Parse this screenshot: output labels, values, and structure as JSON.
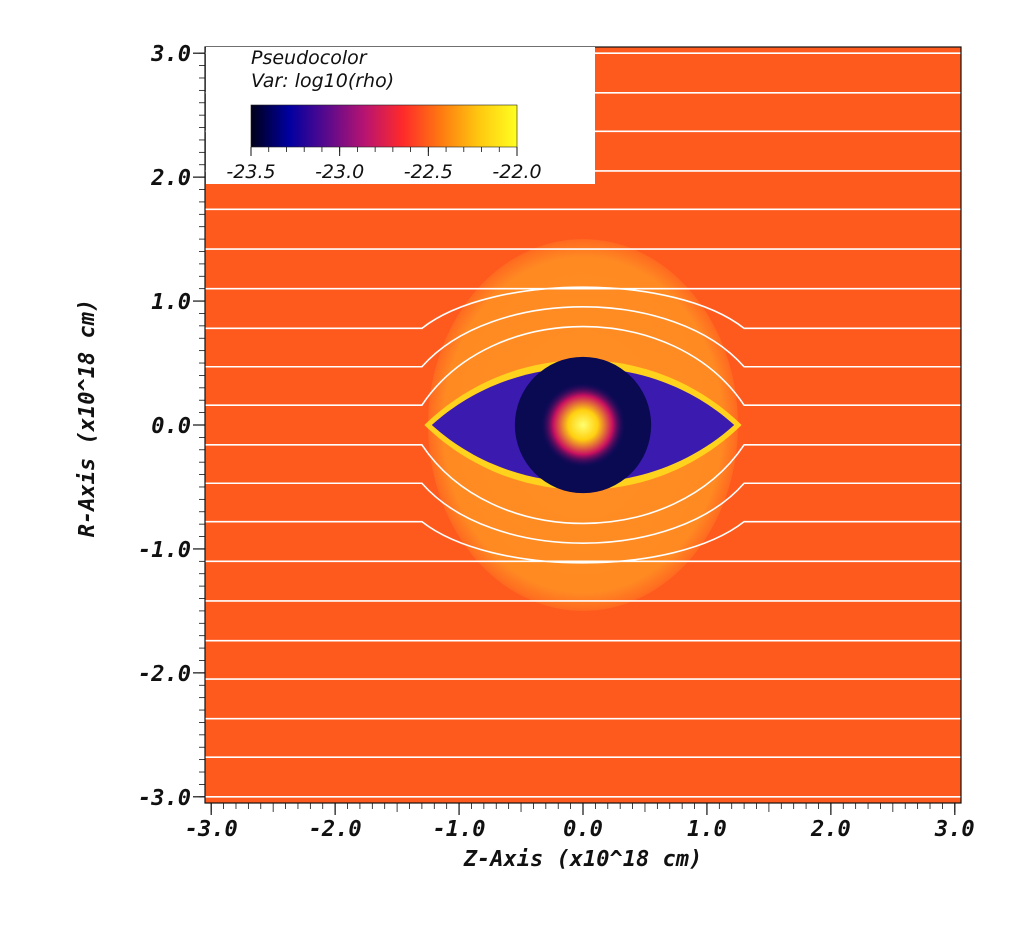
{
  "chart_data": {
    "type": "heatmap",
    "title": "Pseudocolor",
    "variable_label": "Var: log10(rho)",
    "xlabel": "Z-Axis (x10^18 cm)",
    "ylabel": "R-Axis (x10^18 cm)",
    "xlim": [
      -3.05,
      3.05
    ],
    "ylim": [
      -3.05,
      3.05
    ],
    "x_ticks": [
      -3.0,
      -2.0,
      -1.0,
      0.0,
      1.0,
      2.0,
      3.0
    ],
    "x_tick_labels": [
      "-3.0",
      "-2.0",
      "-1.0",
      "0.0",
      "1.0",
      "2.0",
      "3.0"
    ],
    "y_ticks": [
      3.0,
      2.0,
      1.0,
      0.0,
      -1.0,
      -2.0,
      -3.0
    ],
    "y_tick_labels": [
      "3.0",
      "2.0",
      "1.0",
      "0.0",
      "-1.0",
      "-2.0",
      "-3.0"
    ],
    "colorbar": {
      "min": -23.5,
      "max": -22.0,
      "ticks": [
        -23.5,
        -23.0,
        -22.5,
        -22.0
      ],
      "tick_labels": [
        "-23.5",
        "-23.0",
        "-22.5",
        "-22.0"
      ],
      "colors": [
        "#000018",
        "#0000a0",
        "#5a0a8c",
        "#b81470",
        "#ff2a2a",
        "#ff7a10",
        "#ffc810",
        "#ffff20"
      ]
    },
    "ambient_log_rho": -22.55,
    "halo_log_rho": -22.45,
    "halo_extent": {
      "z_radius": 1.25,
      "r_radius": 1.5
    },
    "cavity_extent": {
      "z_half": 1.22,
      "r_half": 0.65
    },
    "core_radius": 0.55,
    "central_peak_log_rho": -22.0,
    "field_lines_r": [
      -3.0,
      -2.68,
      -2.37,
      -2.05,
      -1.74,
      -1.42,
      -1.1,
      -0.78,
      -0.47,
      -0.16,
      0.16,
      0.47,
      0.78,
      1.1,
      1.42,
      1.74,
      2.05,
      2.37,
      2.68,
      3.0
    ],
    "field_line_colors": {
      "line": "#ffffff"
    },
    "region_colors": {
      "ambient": "#ff5a1e",
      "halo": "#ff8a1e",
      "cavity": "#3b1ab0",
      "core": "#0a0a52",
      "shell": "#ffd21e",
      "peak": "#ffff40"
    }
  }
}
